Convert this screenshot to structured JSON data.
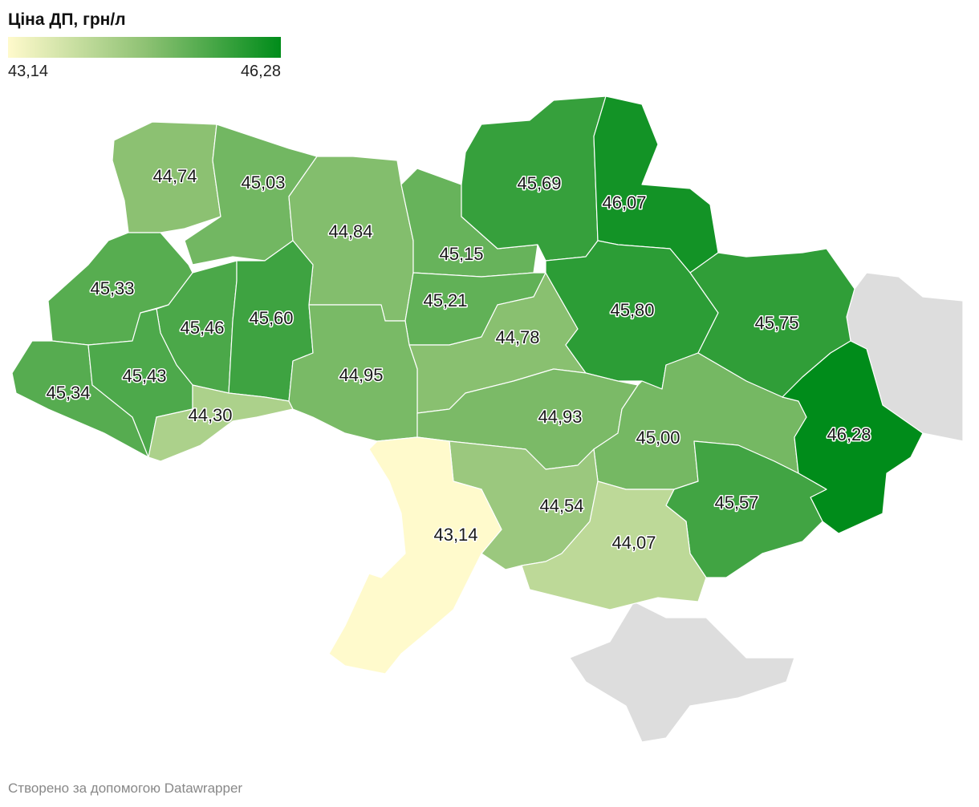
{
  "map": {
    "title": "Ціна ДП, грн/л",
    "legend": {
      "min": 43.14,
      "min_label": "43,14",
      "max": 46.28,
      "max_label": "46,28",
      "colors": [
        "#fffacc",
        "#8fc274",
        "#008c1a"
      ]
    },
    "values": [
      44.74,
      45.03,
      44.84,
      45.15,
      45.69,
      46.07,
      45.33,
      45.46,
      45.6,
      45.21,
      44.78,
      45.8,
      45.75,
      45.34,
      45.43,
      44.3,
      44.95,
      44.93,
      45.0,
      46.28,
      44.54,
      45.57,
      43.14,
      44.07
    ],
    "value_labels": [
      "44,74",
      "45,03",
      "44,84",
      "45,15",
      "45,69",
      "46,07",
      "45,33",
      "45,46",
      "45,60",
      "45,21",
      "44,78",
      "45,80",
      "45,75",
      "45,34",
      "45,43",
      "44,30",
      "44,95",
      "44,93",
      "45,00",
      "46,28",
      "44,54",
      "45,57",
      "43,14",
      "44,07"
    ],
    "no_data_color": "#dddddd",
    "footer": "Створено за допомогою Datawrapper"
  }
}
